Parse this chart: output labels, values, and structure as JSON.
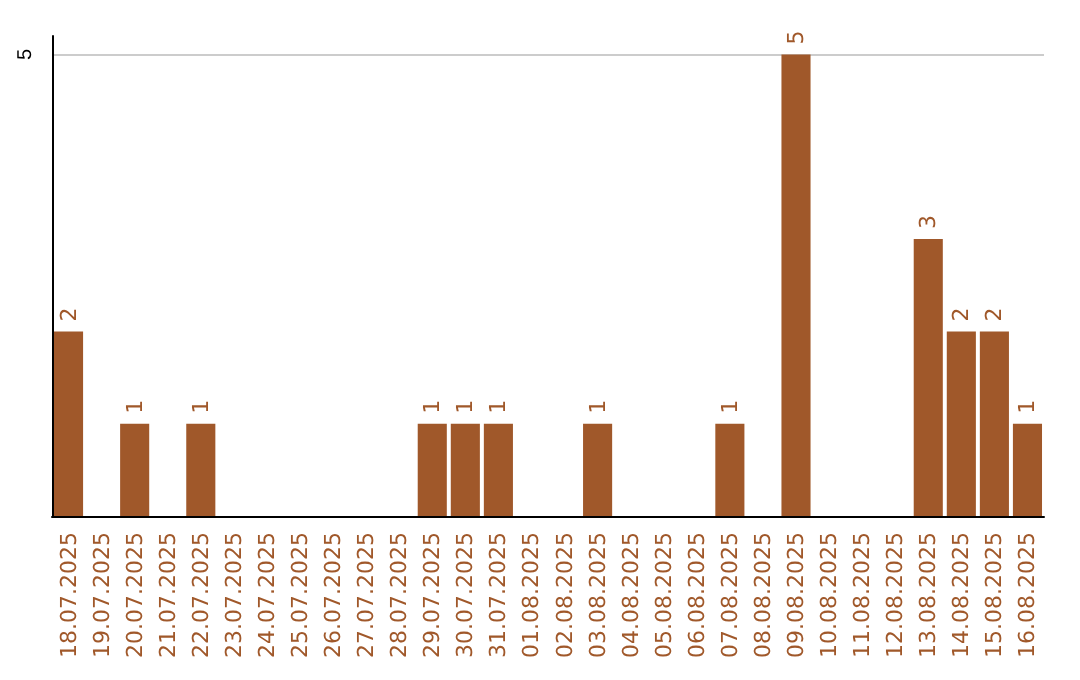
{
  "chart_data": {
    "type": "bar",
    "categories": [
      "18.07.2025",
      "19.07.2025",
      "20.07.2025",
      "21.07.2025",
      "22.07.2025",
      "23.07.2025",
      "24.07.2025",
      "25.07.2025",
      "26.07.2025",
      "27.07.2025",
      "28.07.2025",
      "29.07.2025",
      "30.07.2025",
      "31.07.2025",
      "01.08.2025",
      "02.08.2025",
      "03.08.2025",
      "04.08.2025",
      "05.08.2025",
      "06.08.2025",
      "07.08.2025",
      "08.08.2025",
      "09.08.2025",
      "10.08.2025",
      "11.08.2025",
      "12.08.2025",
      "13.08.2025",
      "14.08.2025",
      "15.08.2025",
      "16.08.2025"
    ],
    "values": [
      2,
      0,
      1,
      0,
      1,
      0,
      0,
      0,
      0,
      0,
      0,
      1,
      1,
      1,
      0,
      0,
      1,
      0,
      0,
      0,
      1,
      0,
      5,
      0,
      0,
      0,
      3,
      2,
      2,
      1
    ],
    "value_labels": [
      "2",
      null,
      "1",
      null,
      "1",
      null,
      null,
      null,
      null,
      null,
      null,
      "1",
      "1",
      "1",
      null,
      null,
      "1",
      null,
      null,
      null,
      "1",
      null,
      "5",
      null,
      null,
      null,
      "3",
      "2",
      "2",
      "1"
    ],
    "color": "#a0582a",
    "ylim": [
      0,
      5.2
    ],
    "yticks": [
      5
    ],
    "grid": "y"
  }
}
